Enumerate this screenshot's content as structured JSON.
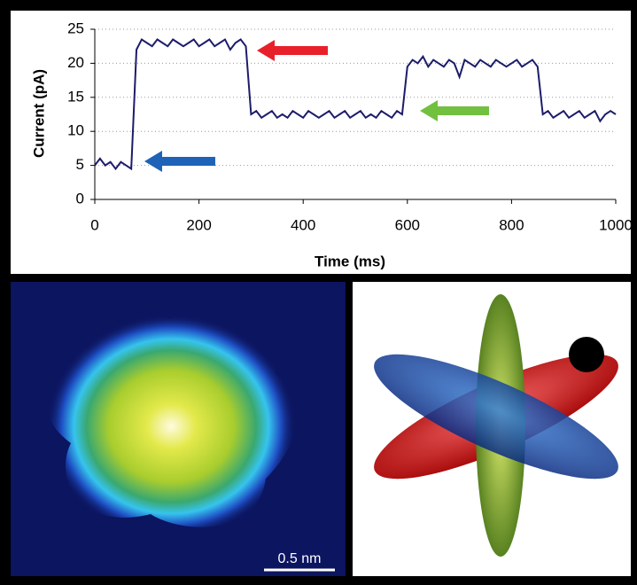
{
  "chart_data": {
    "type": "line",
    "x_label": "Time (ms)",
    "y_label": "Current (pA)",
    "x": [
      0,
      10,
      20,
      30,
      40,
      50,
      60,
      70,
      80,
      90,
      100,
      110,
      120,
      130,
      140,
      150,
      160,
      170,
      180,
      190,
      200,
      210,
      220,
      230,
      240,
      250,
      260,
      270,
      280,
      290,
      300,
      310,
      320,
      330,
      340,
      350,
      360,
      370,
      380,
      390,
      400,
      410,
      420,
      430,
      440,
      450,
      460,
      470,
      480,
      490,
      500,
      510,
      520,
      530,
      540,
      550,
      560,
      570,
      580,
      590,
      600,
      610,
      620,
      630,
      640,
      650,
      660,
      670,
      680,
      690,
      700,
      710,
      720,
      730,
      740,
      750,
      760,
      770,
      780,
      790,
      800,
      810,
      820,
      830,
      840,
      850,
      860,
      870,
      880,
      890,
      900,
      910,
      920,
      930,
      940,
      950,
      960,
      970,
      980,
      990,
      1000
    ],
    "series": [
      {
        "color": "#1c1c6b",
        "values": [
          5,
          6,
          5,
          5.5,
          4.5,
          5.5,
          5,
          4.5,
          22,
          23.5,
          23,
          22.5,
          23.5,
          23,
          22.5,
          23.5,
          23,
          22.5,
          23,
          23.5,
          22.5,
          23,
          23.5,
          22.5,
          23,
          23.5,
          22,
          23,
          23.5,
          22.5,
          12.5,
          13,
          12,
          12.5,
          13,
          12,
          12.5,
          12,
          13,
          12.5,
          12,
          13,
          12.5,
          12,
          12.5,
          13,
          12,
          12.5,
          13,
          12,
          12.5,
          13,
          12,
          12.5,
          12,
          13,
          12.5,
          12,
          13,
          12.5,
          19.5,
          20.5,
          20,
          21,
          19.5,
          20.5,
          20,
          19.5,
          20.5,
          20,
          18,
          20.5,
          20,
          19.5,
          20.5,
          20,
          19.5,
          20.5,
          20,
          19.5,
          20,
          20.5,
          19.5,
          20,
          20.5,
          19.5,
          12.5,
          13,
          12,
          12.5,
          13,
          12,
          12.5,
          13,
          12,
          12.5,
          13,
          11.5,
          12.5,
          13,
          12.5
        ]
      }
    ],
    "xlim": [
      0,
      1000
    ],
    "xticks": [
      0,
      200,
      400,
      600,
      800,
      1000
    ],
    "ylim": [
      0,
      25
    ],
    "yticks": [
      0,
      5,
      10,
      15,
      20,
      25
    ],
    "grid": true
  },
  "scale_bar": {
    "label": "0.5 nm"
  }
}
